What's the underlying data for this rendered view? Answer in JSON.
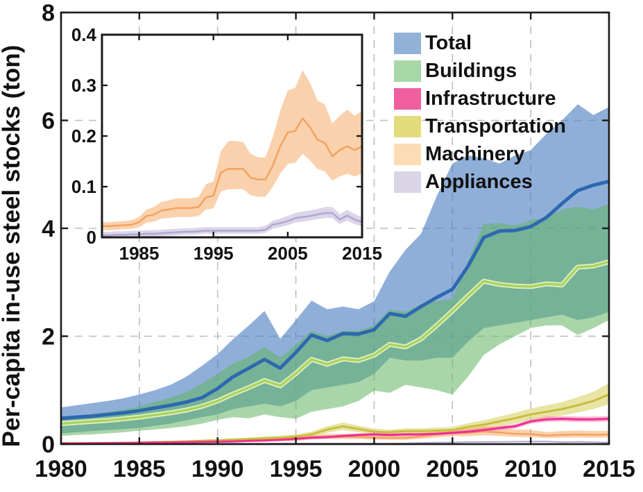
{
  "figure": {
    "ylabel": "Per-capita in-use steel stocks (ton)"
  },
  "legend": {
    "items": [
      {
        "label": "Total",
        "swatch": "#92b1d6"
      },
      {
        "label": "Buildings",
        "swatch": "#a8d8a8"
      },
      {
        "label": "Infrastructure",
        "swatch": "#f0609e"
      },
      {
        "label": "Transportation",
        "swatch": "#e3dc7d"
      },
      {
        "label": "Machinery",
        "swatch": "#fbdcb4"
      },
      {
        "label": "Appliances",
        "swatch": "#d9d5e6"
      }
    ]
  },
  "chart_data": [
    {
      "id": "main",
      "type": "area",
      "title": "",
      "xlabel": "",
      "ylabel": "Per-capita in-use steel stocks (ton)",
      "x": [
        1980,
        1981,
        1982,
        1983,
        1984,
        1985,
        1986,
        1987,
        1988,
        1989,
        1990,
        1991,
        1992,
        1993,
        1994,
        1995,
        1996,
        1997,
        1998,
        1999,
        2000,
        2001,
        2002,
        2003,
        2004,
        2005,
        2006,
        2007,
        2008,
        2009,
        2010,
        2011,
        2012,
        2013,
        2014,
        2015
      ],
      "xlim": [
        1980,
        2015
      ],
      "ylim": [
        0,
        8
      ],
      "xticks": [
        1980,
        1985,
        1990,
        1995,
        2000,
        2005,
        2010,
        2015
      ],
      "yticks": [
        0,
        2,
        4,
        6,
        8
      ],
      "grid": {
        "x": [
          1985,
          1990,
          1995,
          2000,
          2005,
          2010
        ],
        "y": [
          2,
          4,
          6
        ]
      },
      "legend_position": "top-right",
      "series": [
        {
          "name": "Total",
          "line_color": "#2d68b0",
          "line_width": 5,
          "band_fill": "rgba(74,126,194,0.62)",
          "mean": [
            0.48,
            0.5,
            0.52,
            0.55,
            0.58,
            0.62,
            0.67,
            0.72,
            0.78,
            0.86,
            1.03,
            1.25,
            1.41,
            1.57,
            1.41,
            1.7,
            2.02,
            1.92,
            2.05,
            2.04,
            2.12,
            2.42,
            2.37,
            2.55,
            2.72,
            2.87,
            3.3,
            3.83,
            3.95,
            3.96,
            4.03,
            4.2,
            4.46,
            4.7,
            4.8,
            4.87
          ],
          "hi": [
            0.68,
            0.72,
            0.76,
            0.8,
            0.85,
            0.92,
            1.0,
            1.1,
            1.25,
            1.45,
            1.67,
            1.95,
            2.2,
            2.47,
            1.95,
            2.3,
            2.66,
            2.5,
            2.55,
            2.5,
            2.65,
            3.2,
            3.6,
            3.9,
            4.6,
            5.2,
            5.35,
            5.3,
            5.2,
            5.35,
            5.45,
            5.75,
            6.0,
            6.3,
            6.1,
            6.25
          ],
          "lo": [
            0.2,
            0.22,
            0.24,
            0.26,
            0.28,
            0.3,
            0.34,
            0.38,
            0.44,
            0.5,
            0.55,
            0.65,
            0.7,
            0.75,
            0.7,
            0.8,
            1.0,
            1.05,
            1.1,
            1.15,
            1.3,
            1.6,
            1.55,
            1.55,
            1.6,
            1.6,
            1.9,
            2.15,
            2.2,
            2.25,
            2.3,
            2.35,
            2.4,
            2.3,
            2.35,
            2.45
          ]
        },
        {
          "name": "Buildings",
          "line_color": "#a9d35f",
          "line_halo": "#e2f1c4",
          "line_width": 3.5,
          "band_fill": "rgba(98,180,98,0.55)",
          "mean": [
            0.38,
            0.4,
            0.42,
            0.44,
            0.47,
            0.5,
            0.54,
            0.58,
            0.63,
            0.7,
            0.8,
            0.93,
            1.05,
            1.18,
            1.08,
            1.31,
            1.57,
            1.48,
            1.58,
            1.55,
            1.65,
            1.85,
            1.8,
            1.95,
            2.2,
            2.47,
            2.75,
            3.02,
            2.96,
            2.93,
            2.92,
            2.97,
            2.95,
            3.28,
            3.3,
            3.38
          ],
          "hi": [
            0.5,
            0.53,
            0.56,
            0.6,
            0.64,
            0.7,
            0.78,
            0.86,
            0.97,
            1.12,
            1.3,
            1.5,
            1.62,
            1.8,
            1.6,
            1.85,
            2.1,
            2.0,
            2.1,
            2.1,
            2.2,
            2.5,
            2.45,
            2.6,
            2.65,
            2.7,
            3.4,
            4.08,
            4.1,
            4.05,
            4.15,
            4.2,
            4.35,
            4.4,
            4.35,
            4.45
          ],
          "lo": [
            0.15,
            0.17,
            0.18,
            0.2,
            0.22,
            0.25,
            0.27,
            0.3,
            0.33,
            0.38,
            0.45,
            0.5,
            0.48,
            0.55,
            0.5,
            0.47,
            0.6,
            0.65,
            0.7,
            0.8,
            0.99,
            0.95,
            1.1,
            1.05,
            1.0,
            0.92,
            1.25,
            1.65,
            1.85,
            2.0,
            2.15,
            2.2,
            2.2,
            2.02,
            2.15,
            2.3
          ]
        },
        {
          "name": "Infrastructure",
          "line_color": "#ee2f8f",
          "line_width": 3,
          "band_fill": "rgba(239,116,174,0.5)",
          "mean": [
            0.01,
            0.012,
            0.015,
            0.018,
            0.02,
            0.025,
            0.028,
            0.03,
            0.035,
            0.04,
            0.045,
            0.05,
            0.06,
            0.07,
            0.08,
            0.1,
            0.12,
            0.13,
            0.15,
            0.17,
            0.18,
            0.17,
            0.18,
            0.18,
            0.19,
            0.21,
            0.23,
            0.26,
            0.3,
            0.33,
            0.42,
            0.46,
            0.47,
            0.46,
            0.46,
            0.47
          ],
          "hi": [
            0.02,
            0.025,
            0.03,
            0.033,
            0.036,
            0.042,
            0.046,
            0.05,
            0.056,
            0.062,
            0.068,
            0.075,
            0.085,
            0.098,
            0.11,
            0.13,
            0.15,
            0.16,
            0.18,
            0.2,
            0.21,
            0.2,
            0.21,
            0.21,
            0.22,
            0.24,
            0.27,
            0.3,
            0.34,
            0.37,
            0.46,
            0.51,
            0.52,
            0.51,
            0.51,
            0.52
          ],
          "lo": [
            0.005,
            0.006,
            0.008,
            0.01,
            0.011,
            0.014,
            0.016,
            0.018,
            0.021,
            0.025,
            0.028,
            0.032,
            0.04,
            0.048,
            0.056,
            0.073,
            0.092,
            0.1,
            0.12,
            0.14,
            0.15,
            0.14,
            0.15,
            0.15,
            0.16,
            0.18,
            0.19,
            0.22,
            0.26,
            0.29,
            0.38,
            0.41,
            0.42,
            0.41,
            0.41,
            0.42
          ]
        },
        {
          "name": "Transportation",
          "line_color": "#c9bd3e",
          "line_width": 3,
          "band_fill": "rgba(214,205,89,0.55)",
          "mean": [
            0.01,
            0.013,
            0.016,
            0.02,
            0.025,
            0.03,
            0.036,
            0.042,
            0.05,
            0.06,
            0.07,
            0.08,
            0.092,
            0.108,
            0.12,
            0.14,
            0.18,
            0.27,
            0.33,
            0.28,
            0.23,
            0.22,
            0.24,
            0.24,
            0.25,
            0.26,
            0.32,
            0.36,
            0.42,
            0.48,
            0.55,
            0.6,
            0.65,
            0.72,
            0.8,
            0.92
          ],
          "hi": [
            0.018,
            0.022,
            0.027,
            0.032,
            0.038,
            0.045,
            0.052,
            0.06,
            0.07,
            0.082,
            0.095,
            0.108,
            0.122,
            0.14,
            0.155,
            0.18,
            0.23,
            0.33,
            0.4,
            0.345,
            0.285,
            0.272,
            0.295,
            0.295,
            0.308,
            0.32,
            0.39,
            0.44,
            0.51,
            0.58,
            0.66,
            0.72,
            0.78,
            0.87,
            0.97,
            1.13
          ],
          "lo": [
            0.004,
            0.006,
            0.008,
            0.01,
            0.013,
            0.017,
            0.021,
            0.026,
            0.032,
            0.04,
            0.048,
            0.055,
            0.064,
            0.078,
            0.088,
            0.103,
            0.135,
            0.21,
            0.262,
            0.22,
            0.18,
            0.172,
            0.188,
            0.188,
            0.196,
            0.205,
            0.252,
            0.285,
            0.335,
            0.385,
            0.445,
            0.49,
            0.53,
            0.585,
            0.65,
            0.74
          ]
        },
        {
          "name": "Machinery",
          "line_color": "#f3a35f",
          "line_width": 2.5,
          "band_fill": "rgba(245,163,91,0.5)",
          "mean": [
            0.022,
            0.022,
            0.023,
            0.024,
            0.025,
            0.03,
            0.042,
            0.045,
            0.053,
            0.055,
            0.058,
            0.058,
            0.058,
            0.06,
            0.079,
            0.082,
            0.128,
            0.135,
            0.135,
            0.135,
            0.118,
            0.114,
            0.114,
            0.142,
            0.18,
            0.207,
            0.21,
            0.235,
            0.217,
            0.193,
            0.186,
            0.16,
            0.172,
            0.18,
            0.172,
            0.18
          ],
          "hi": [
            0.03,
            0.03,
            0.031,
            0.032,
            0.034,
            0.04,
            0.055,
            0.06,
            0.07,
            0.073,
            0.077,
            0.077,
            0.077,
            0.08,
            0.105,
            0.11,
            0.17,
            0.19,
            0.19,
            0.188,
            0.165,
            0.158,
            0.158,
            0.198,
            0.25,
            0.29,
            0.295,
            0.33,
            0.305,
            0.27,
            0.262,
            0.225,
            0.24,
            0.252,
            0.24,
            0.25
          ],
          "lo": [
            0.014,
            0.014,
            0.015,
            0.016,
            0.017,
            0.02,
            0.029,
            0.031,
            0.037,
            0.038,
            0.04,
            0.04,
            0.04,
            0.042,
            0.055,
            0.057,
            0.09,
            0.095,
            0.095,
            0.095,
            0.083,
            0.08,
            0.08,
            0.1,
            0.126,
            0.145,
            0.147,
            0.165,
            0.152,
            0.135,
            0.13,
            0.112,
            0.12,
            0.126,
            0.12,
            0.126
          ]
        },
        {
          "name": "Appliances",
          "line_color": "#b3a6cf",
          "line_width": 2,
          "band_fill": "rgba(183,174,214,0.5)",
          "mean": [
            0.004,
            0.004,
            0.005,
            0.005,
            0.006,
            0.006,
            0.007,
            0.007,
            0.008,
            0.009,
            0.01,
            0.011,
            0.011,
            0.012,
            0.013,
            0.013,
            0.013,
            0.013,
            0.013,
            0.013,
            0.013,
            0.013,
            0.015,
            0.025,
            0.028,
            0.032,
            0.038,
            0.04,
            0.042,
            0.045,
            0.048,
            0.048,
            0.035,
            0.043,
            0.035,
            0.03
          ],
          "hi": [
            0.011,
            0.011,
            0.012,
            0.012,
            0.013,
            0.013,
            0.014,
            0.014,
            0.015,
            0.016,
            0.017,
            0.018,
            0.018,
            0.019,
            0.02,
            0.02,
            0.02,
            0.02,
            0.02,
            0.02,
            0.02,
            0.02,
            0.023,
            0.033,
            0.037,
            0.042,
            0.048,
            0.051,
            0.053,
            0.056,
            0.06,
            0.06,
            0.046,
            0.054,
            0.046,
            0.04
          ],
          "lo": [
            0.0,
            0.0,
            0.0,
            0.0,
            0.001,
            0.001,
            0.001,
            0.002,
            0.002,
            0.003,
            0.004,
            0.005,
            0.005,
            0.006,
            0.007,
            0.007,
            0.007,
            0.007,
            0.007,
            0.007,
            0.007,
            0.007,
            0.009,
            0.017,
            0.02,
            0.024,
            0.029,
            0.031,
            0.033,
            0.036,
            0.038,
            0.038,
            0.026,
            0.033,
            0.026,
            0.022
          ]
        }
      ]
    },
    {
      "id": "inset",
      "type": "area",
      "title": "",
      "xlim": [
        1980,
        2015
      ],
      "ylim": [
        0,
        0.4
      ],
      "xticks": [
        1985,
        1995,
        2005,
        2015
      ],
      "yticks": [
        0,
        0.1,
        0.2,
        0.3,
        0.4
      ],
      "grid": {
        "x": [],
        "y": []
      },
      "series_refs": [
        "Machinery",
        "Appliances"
      ]
    }
  ]
}
